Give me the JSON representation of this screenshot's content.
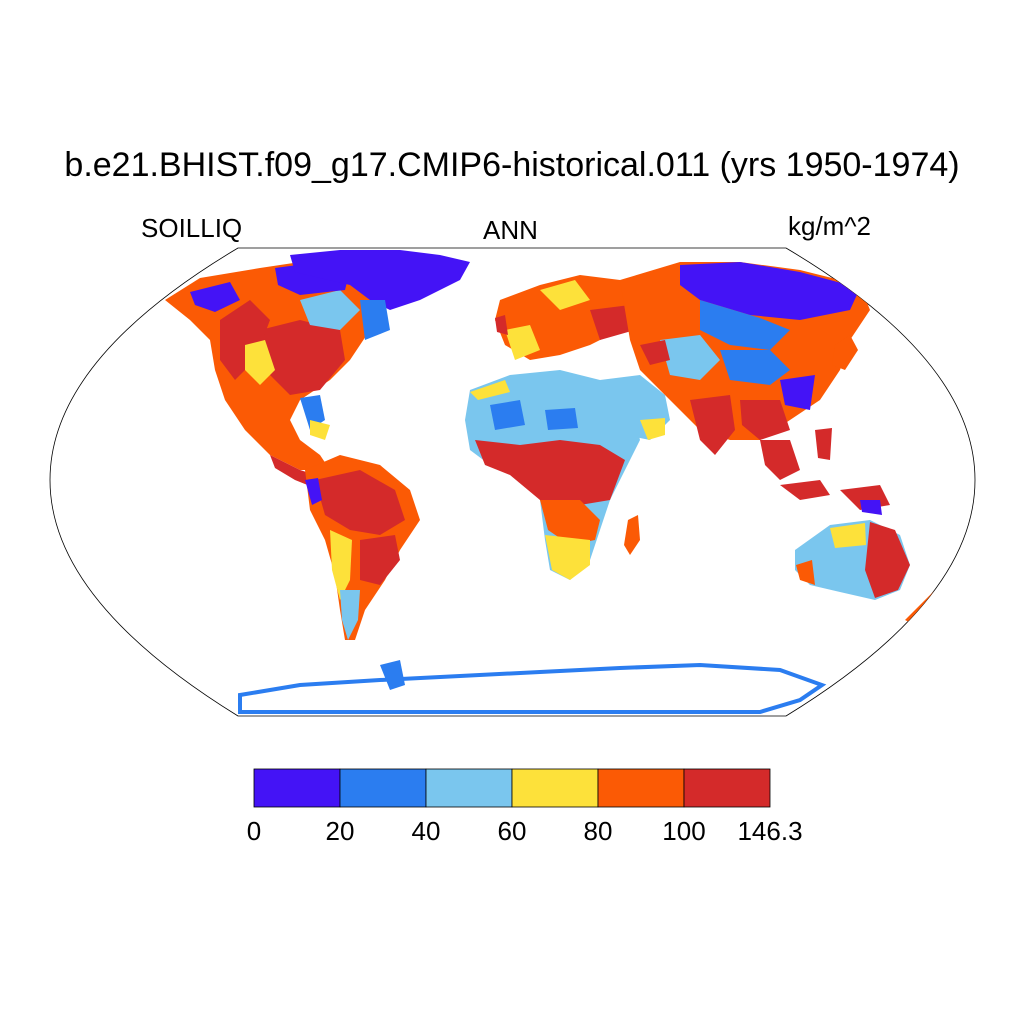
{
  "title": "b.e21.BHIST.f09_g17.CMIP6-historical.011 (yrs 1950-1974)",
  "left_label": "SOILLIQ",
  "center_label": "ANN",
  "right_label": "kg/m^2",
  "projection": "Robinson",
  "colorbar": {
    "levels": [
      "0",
      "20",
      "40",
      "60",
      "80",
      "100",
      "146.3"
    ],
    "colors": [
      "#4413f6",
      "#2b7df0",
      "#7ac6ee",
      "#fde13a",
      "#fb5a05",
      "#d42a2a"
    ]
  },
  "chart_data": {
    "type": "heatmap",
    "title": "b.e21.BHIST.f09_g17.CMIP6-historical.011 (yrs 1950-1974)",
    "variable": "SOILLIQ",
    "period": "ANN",
    "units": "kg/m^2",
    "contour_levels": [
      0,
      20,
      40,
      60,
      80,
      100,
      146.3
    ],
    "regions": [
      {
        "name": "Greenland / Canadian Arctic",
        "bin": "0-20"
      },
      {
        "name": "Northern Siberia",
        "bin": "0-20"
      },
      {
        "name": "Eastern North America",
        "bin": "80-146.3"
      },
      {
        "name": "Western US",
        "bin": "60-100"
      },
      {
        "name": "Sahara",
        "bin": "40-60"
      },
      {
        "name": "Arabian Peninsula",
        "bin": "40-60"
      },
      {
        "name": "Central Africa",
        "bin": "80-146.3"
      },
      {
        "name": "Southern Africa",
        "bin": "60-80"
      },
      {
        "name": "Amazon",
        "bin": "100-146.3"
      },
      {
        "name": "Patagonia",
        "bin": "40-60"
      },
      {
        "name": "Europe",
        "bin": "60-100"
      },
      {
        "name": "Central Asia",
        "bin": "20-60"
      },
      {
        "name": "South & Southeast Asia",
        "bin": "80-146.3"
      },
      {
        "name": "Interior Australia",
        "bin": "40-60"
      },
      {
        "name": "Eastern Australia",
        "bin": "80-146.3"
      },
      {
        "name": "Antarctica coast",
        "bin": "20-40"
      }
    ]
  }
}
